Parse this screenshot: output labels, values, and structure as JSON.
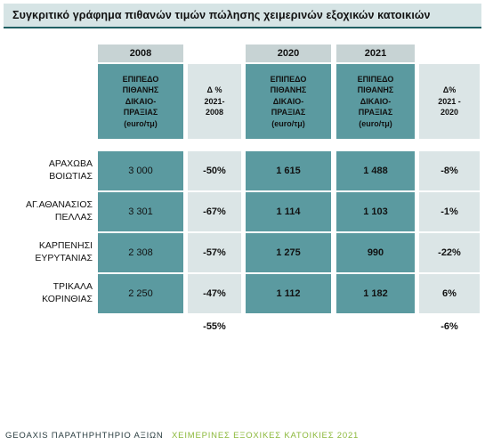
{
  "title": "Συγκριτικό γράφημα πιθανών τιμών πώλησης χειμερινών εξοχικών κατοικιών",
  "years": {
    "y2008": "2008",
    "y2020": "2020",
    "y2021": "2021"
  },
  "headers": {
    "price_2008": "ΕΠΙΠΕΔΟ\nΠΙΘΑΝΗΣ\nΔΙΚΑΙΟ-\nΠΡΑΞΙΑΣ\n(euro/τμ)",
    "delta_2021_2008": "Δ %\n2021-\n2008",
    "price_2020": "ΕΠΙΠΕΔΟ\nΠΙΘΑΝΗΣ\nΔΙΚΑΙΟ-\nΠΡΑΞΙΑΣ\n(euro/τμ)",
    "price_2021": "ΕΠΙΠΕΔΟ\nΠΙΘΑΝΗΣ\nΔΙΚΑΙΟ-\nΠΡΑΞΙΑΣ\n(euro/τμ)",
    "delta_2021_2020": "Δ%\n2021 -\n2020"
  },
  "rows": [
    {
      "label": "ΑΡΑΧΩΒΑ\nΒΟΙΩΤΙΑΣ",
      "p2008": "3 000",
      "d2008": "-50%",
      "p2020": "1 615",
      "p2021": "1 488",
      "d2020": "-8%"
    },
    {
      "label": "ΑΓ.ΑΘΑΝΑΣΙΟΣ\nΠΕΛΛΑΣ",
      "p2008": "3 301",
      "d2008": "-67%",
      "p2020": "1 114",
      "p2021": "1 103",
      "d2020": "-1%"
    },
    {
      "label": "ΚΑΡΠΕΝΗΣΙ\nΕΥΡΥΤΑΝΙΑΣ",
      "p2008": "2 308",
      "d2008": "-57%",
      "p2020": "1 275",
      "p2021": "990",
      "d2020": "-22%"
    },
    {
      "label": "ΤΡΙΚΑΛΑ\nΚΟΡΙΝΘΙΑΣ",
      "p2008": "2 250",
      "d2008": "-47%",
      "p2020": "1 112",
      "p2021": "1 182",
      "d2020": "6%"
    }
  ],
  "totals": {
    "d2008": "-55%",
    "d2020": "-6%"
  },
  "footer": {
    "left": "GEOAXIS ΠΑΡΑΤΗΡΗΤΗΡΙΟ ΑΞΙΩΝ",
    "right": "ΧΕΙΜΕΡΙΝΕΣ ΕΞΟΧΙΚΕΣ ΚΑΤΟΙΚΙΕΣ  2021"
  }
}
